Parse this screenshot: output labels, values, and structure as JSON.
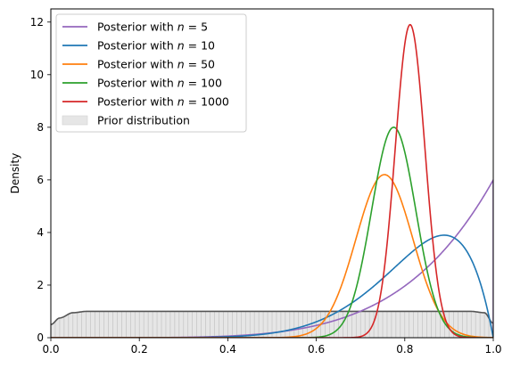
{
  "chart_data": {
    "type": "line",
    "title": "",
    "xlabel": "",
    "ylabel": "Density",
    "xlim": [
      0.0,
      1.0
    ],
    "ylim": [
      0,
      12.5
    ],
    "xticks": [
      "0.0",
      "0.2",
      "0.4",
      "0.6",
      "0.8",
      "1.0"
    ],
    "yticks": [
      "0",
      "2",
      "4",
      "6",
      "8",
      "10",
      "12"
    ],
    "grid": false,
    "legend_position": "top-left",
    "prior": {
      "label": "Prior distribution",
      "color": "#555555",
      "fill": "#e6e6e6",
      "x": [
        0.0,
        0.02,
        0.05,
        0.08,
        0.1,
        0.95,
        0.98,
        1.0
      ],
      "y": [
        0.5,
        0.75,
        0.95,
        1.0,
        1.0,
        1.0,
        0.95,
        0.55
      ]
    },
    "series": [
      {
        "label_prefix": "Posterior with ",
        "label_var": "n",
        "label_eq": " = 5",
        "color": "#9467bd",
        "model": "beta",
        "a": 6,
        "b": 1
      },
      {
        "label_prefix": "Posterior with ",
        "label_var": "n",
        "label_eq": " = 10",
        "color": "#1f77b4",
        "model": "beta",
        "a": 9,
        "b": 2
      },
      {
        "label_prefix": "Posterior with ",
        "label_var": "n",
        "label_eq": " = 50",
        "color": "#ff7f0e",
        "model": "normal",
        "mu": 0.754,
        "sigma": 0.0643,
        "peak": 6.2
      },
      {
        "label_prefix": "Posterior with ",
        "label_var": "n",
        "label_eq": " = 100",
        "color": "#2ca02c",
        "model": "normal",
        "mu": 0.775,
        "sigma": 0.0499,
        "peak": 8.0
      },
      {
        "label_prefix": "Posterior with ",
        "label_var": "n",
        "label_eq": " = 1000",
        "color": "#d62728",
        "model": "normal",
        "mu": 0.812,
        "sigma": 0.0335,
        "peak": 11.9
      }
    ]
  }
}
